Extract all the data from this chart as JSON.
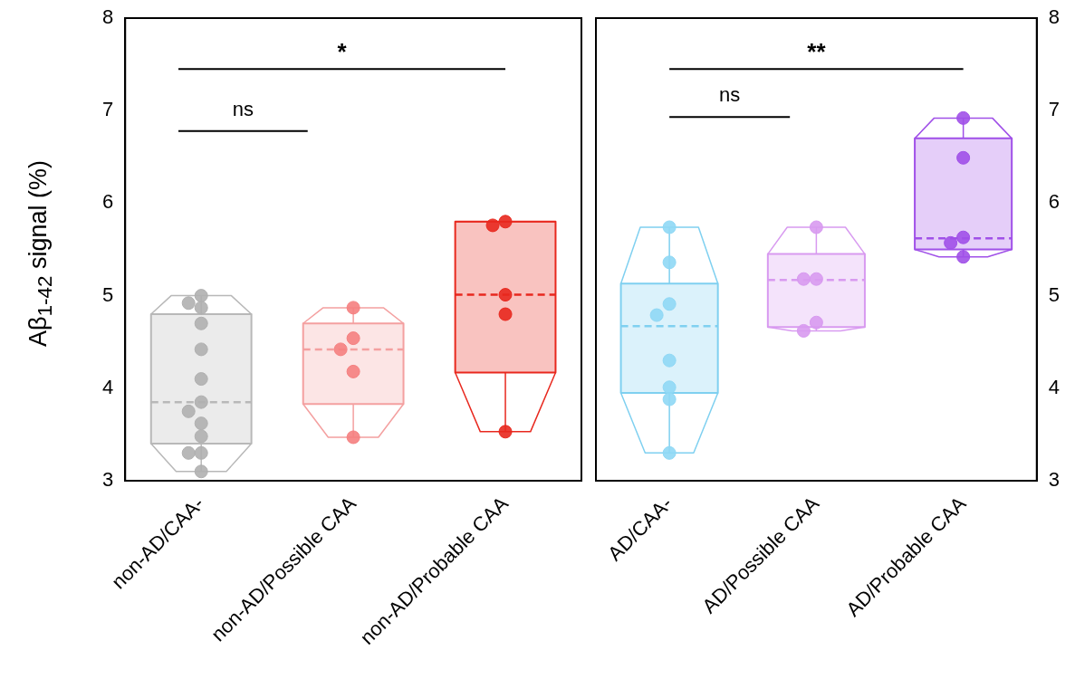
{
  "chart_data": [
    {
      "type": "box",
      "ylabel": "Aβ$_{1-42}$ signal (%)",
      "categories": [
        "non-AD/CAA-",
        "non-AD/Possible CAA",
        "non-AD/Probable CAA"
      ],
      "ylim": [
        3,
        8
      ],
      "yticks": [
        3,
        4,
        5,
        6,
        7,
        8
      ],
      "grid": false,
      "legend": false,
      "marker": "circle",
      "annotations": [
        "*",
        "ns"
      ],
      "series": [
        {
          "type": "box",
          "colors": [
            "#b8b8b8",
            "#f4a0a0",
            "#e8281e"
          ],
          "boxes": [
            {
              "low": 3.1,
              "q1": 3.4,
              "median": 3.85,
              "q3": 4.8,
              "high": 5.0
            },
            {
              "low": 3.47,
              "q1": 3.83,
              "median": 4.42,
              "q3": 4.7,
              "high": 4.87
            },
            {
              "low": 3.53,
              "q1": 4.17,
              "median": 5.01,
              "q3": 5.8,
              "high": 5.8
            }
          ]
        },
        {
          "type": "scatter",
          "color": "#b0b0b0",
          "x": [
            "non-AD/CAA-",
            "non-AD/CAA-",
            "non-AD/CAA-",
            "non-AD/CAA-",
            "non-AD/CAA-",
            "non-AD/CAA-",
            "non-AD/CAA-",
            "non-AD/CAA-",
            "non-AD/CAA-",
            "non-AD/CAA-",
            "non-AD/CAA-",
            "non-AD/CAA-",
            "non-AD/CAA-"
          ],
          "values": [
            5.0,
            4.92,
            4.87,
            4.7,
            4.42,
            4.1,
            3.85,
            3.75,
            3.62,
            3.48,
            3.3,
            3.3,
            3.1
          ]
        },
        {
          "type": "scatter",
          "color": "#f58080",
          "x": [
            "non-AD/Possible CAA",
            "non-AD/Possible CAA",
            "non-AD/Possible CAA",
            "non-AD/Possible CAA",
            "non-AD/Possible CAA"
          ],
          "values": [
            4.87,
            4.54,
            4.42,
            4.18,
            3.47
          ]
        },
        {
          "type": "scatter",
          "color": "#e8281e",
          "x": [
            "non-AD/Probable CAA",
            "non-AD/Probable CAA",
            "non-AD/Probable CAA",
            "non-AD/Probable CAA",
            "non-AD/Probable CAA"
          ],
          "values": [
            5.8,
            5.76,
            5.01,
            4.8,
            3.53
          ]
        }
      ]
    },
    {
      "type": "box",
      "categories": [
        "AD/CAA-",
        "AD/Possible CAA",
        "AD/Probable CAA"
      ],
      "y2lim": [
        3,
        8
      ],
      "y2ticks": [
        3,
        4,
        5,
        6,
        7,
        8
      ],
      "grid": false,
      "legend": false,
      "marker": "circle",
      "annotations": [
        "**",
        "ns"
      ],
      "series": [
        {
          "type": "box",
          "axis": "y2",
          "colors": [
            "#7fd0f0",
            "#d89af0",
            "#a050e8"
          ],
          "boxes": [
            {
              "low": 3.3,
              "q1": 3.95,
              "median": 4.67,
              "q3": 5.13,
              "high": 5.74
            },
            {
              "low": 4.62,
              "q1": 4.66,
              "median": 5.17,
              "q3": 5.45,
              "high": 5.74
            },
            {
              "low": 5.42,
              "q1": 5.5,
              "median": 5.62,
              "q3": 6.7,
              "high": 6.92
            }
          ]
        },
        {
          "type": "scatter",
          "axis": "y2",
          "color": "#8fd8f5",
          "x": [
            "AD/CAA-",
            "AD/CAA-",
            "AD/CAA-",
            "AD/CAA-",
            "AD/CAA-",
            "AD/CAA-",
            "AD/CAA-",
            "AD/CAA-"
          ],
          "values": [
            5.74,
            5.36,
            4.91,
            4.79,
            4.3,
            4.01,
            3.88,
            3.3
          ]
        },
        {
          "type": "scatter",
          "axis": "y2",
          "color": "#d89af0",
          "x": [
            "AD/Possible CAA",
            "AD/Possible CAA",
            "AD/Possible CAA",
            "AD/Possible CAA",
            "AD/Possible CAA"
          ],
          "values": [
            5.74,
            5.18,
            5.18,
            4.71,
            4.62
          ]
        },
        {
          "type": "scatter",
          "axis": "y2",
          "color": "#a050e8",
          "x": [
            "AD/Probable CAA",
            "AD/Probable CAA",
            "AD/Probable CAA",
            "AD/Probable CAA",
            "AD/Probable CAA"
          ],
          "values": [
            6.92,
            6.49,
            5.63,
            5.57,
            5.42
          ]
        }
      ]
    }
  ]
}
